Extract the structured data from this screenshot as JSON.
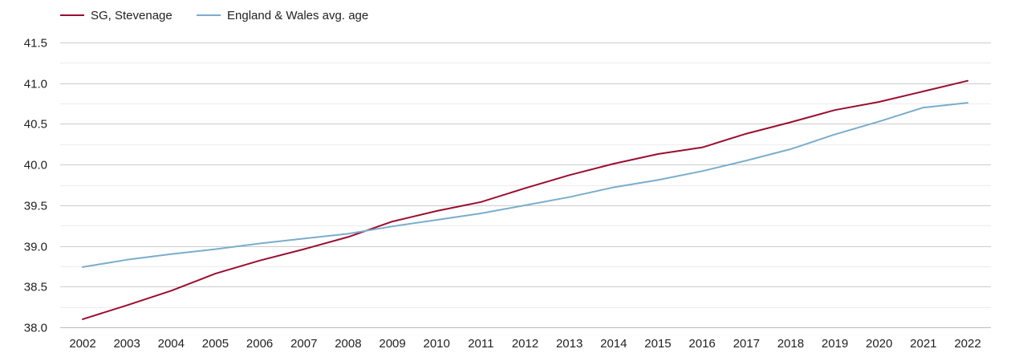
{
  "chart_data": {
    "type": "line",
    "title": "",
    "xlabel": "",
    "ylabel": "",
    "x": [
      2002,
      2003,
      2004,
      2005,
      2006,
      2007,
      2008,
      2009,
      2010,
      2011,
      2012,
      2013,
      2014,
      2015,
      2016,
      2017,
      2018,
      2019,
      2020,
      2021,
      2022
    ],
    "ylim": [
      38.0,
      41.5
    ],
    "yticks": [
      "38.0",
      "38.5",
      "39.0",
      "39.5",
      "40.0",
      "40.5",
      "41.0",
      "41.5"
    ],
    "grid": true,
    "legend_position": "top-left",
    "series": [
      {
        "name": "SG, Stevenage",
        "color": "#9b0d2f",
        "values": [
          38.1,
          38.27,
          38.45,
          38.66,
          38.82,
          38.96,
          39.11,
          39.3,
          39.43,
          39.54,
          39.71,
          39.87,
          40.01,
          40.13,
          40.21,
          40.38,
          40.52,
          40.67,
          40.77,
          40.9,
          41.03
        ]
      },
      {
        "name": "England & Wales avg. age",
        "color": "#7aadcc",
        "values": [
          38.74,
          38.83,
          38.9,
          38.96,
          39.03,
          39.09,
          39.15,
          39.24,
          39.32,
          39.4,
          39.5,
          39.6,
          39.72,
          39.81,
          39.92,
          40.05,
          40.19,
          40.37,
          40.53,
          40.7,
          40.76
        ]
      }
    ]
  }
}
